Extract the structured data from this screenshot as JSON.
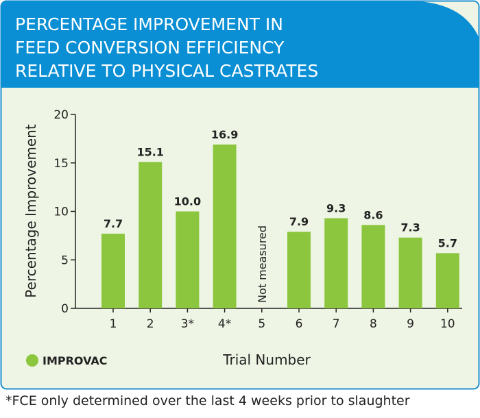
{
  "chart_data": {
    "type": "bar",
    "title_lines": [
      "PERCENTAGE IMPROVEMENT IN",
      "FEED CONVERSION EFFICIENCY",
      "RELATIVE TO PHYSICAL CASTRATES"
    ],
    "ylabel": "Percentage Improvement",
    "xlabel": "Trial Number",
    "ylim": [
      0,
      20
    ],
    "yticks": [
      "0",
      "5",
      "10",
      "15",
      "20"
    ],
    "categories": [
      "1",
      "2",
      "3*",
      "4*",
      "5",
      "6",
      "7",
      "8",
      "9",
      "10"
    ],
    "values": [
      7.7,
      15.1,
      10.0,
      16.9,
      null,
      7.9,
      9.3,
      8.6,
      7.3,
      5.7
    ],
    "value_labels": [
      "7.7",
      "15.1",
      "10.0",
      "16.9",
      "Not measured",
      "7.9",
      "9.3",
      "8.6",
      "7.3",
      "5.7"
    ],
    "legend": {
      "label": "IMPROVAC",
      "position": "bottom-left"
    },
    "colors": {
      "bar": "#8cc63f",
      "header": "#0a8fd4",
      "panel": "#eef5e4",
      "border": "#1f8fd0"
    }
  },
  "footnote": "*FCE only determined over the last 4 weeks prior to slaughter"
}
